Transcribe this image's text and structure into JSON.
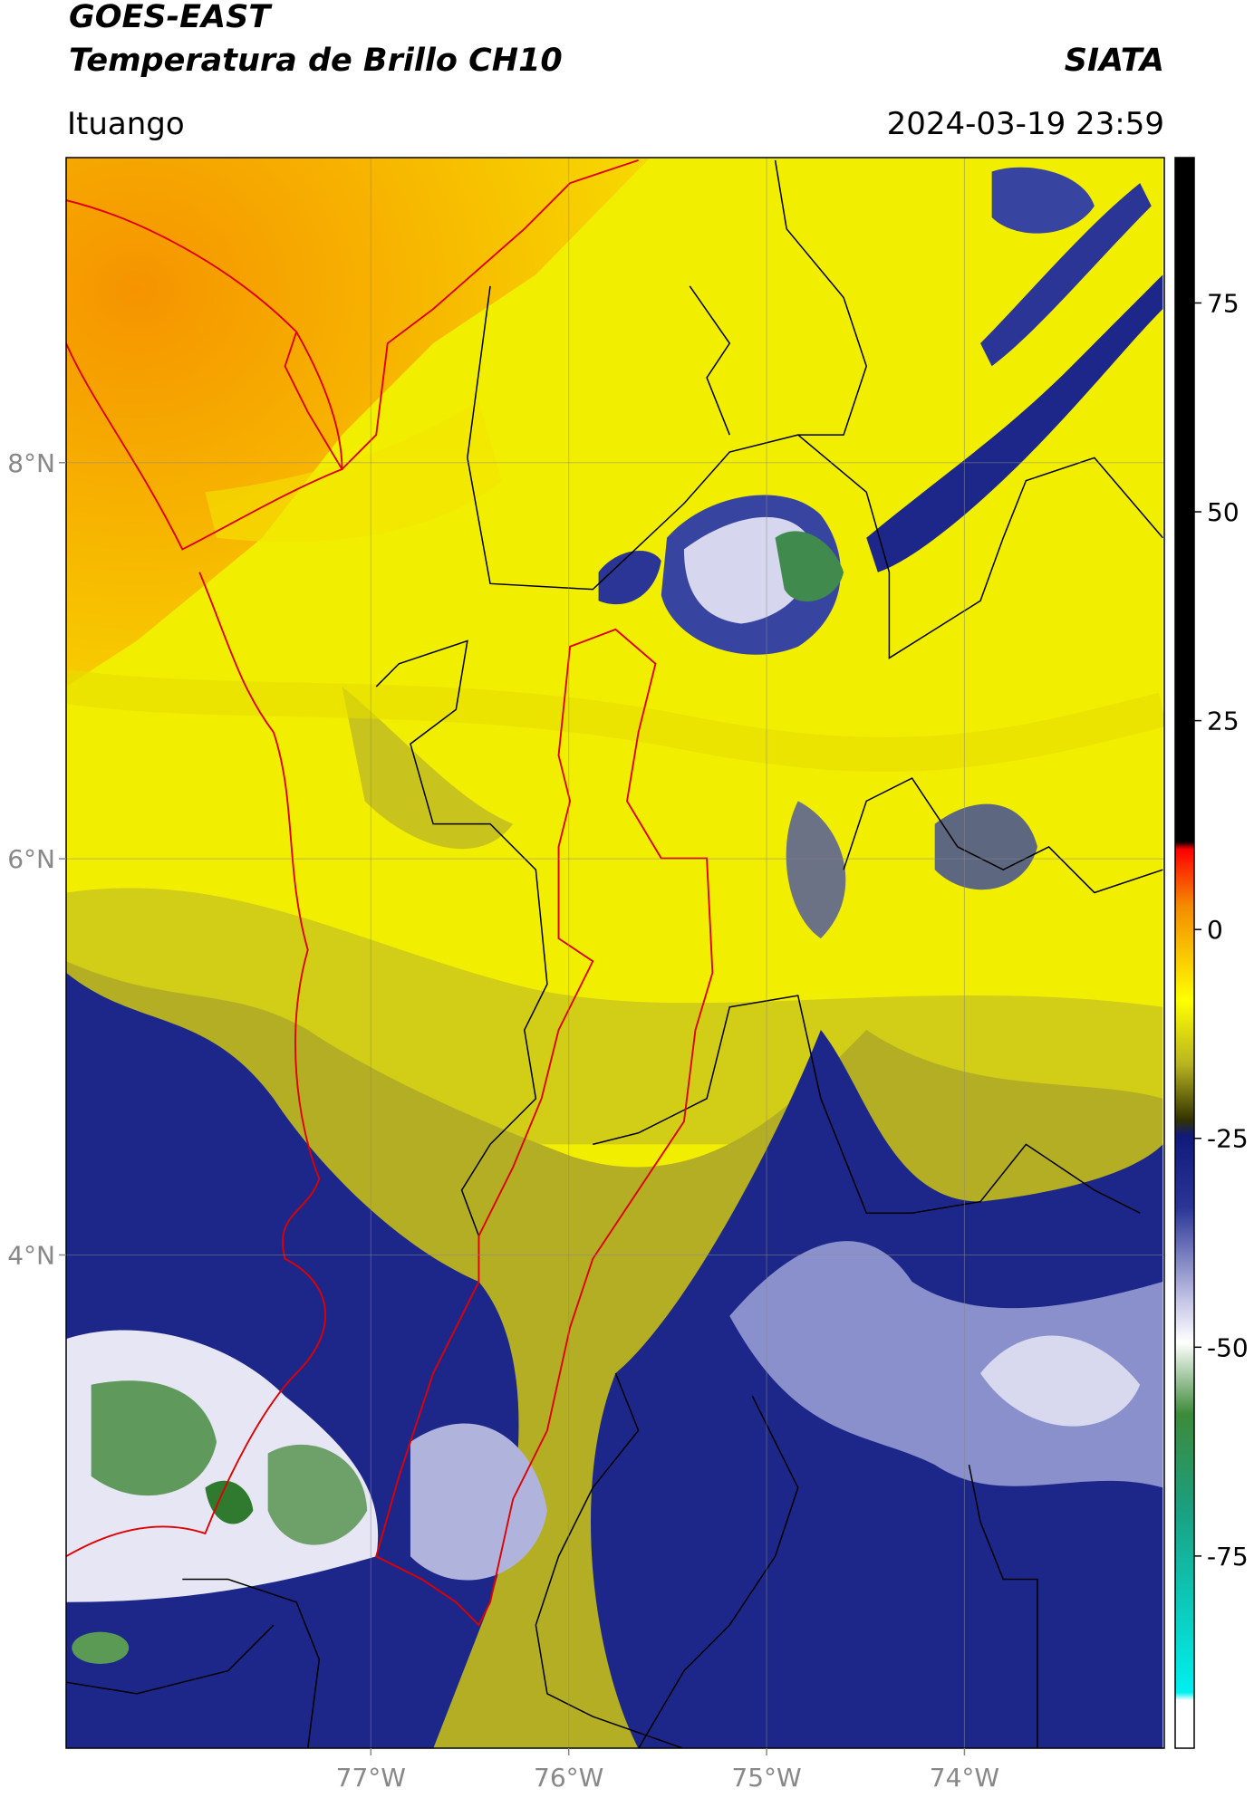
{
  "header": {
    "title": "GOES-EAST",
    "subtitle": "Temperatura de Brillo CH10",
    "organization": "SIATA",
    "location": "Ituango",
    "datetime": "2024-03-19 23:59"
  },
  "map": {
    "lonlim": [
      -78.54,
      -72.99
    ],
    "latlim": [
      1.51,
      9.54
    ],
    "lonticks": [
      {
        "value": -77,
        "label": "77°W"
      },
      {
        "value": -76,
        "label": "76°W"
      },
      {
        "value": -75,
        "label": "75°W"
      },
      {
        "value": -74,
        "label": "74°W"
      }
    ],
    "latticks": [
      {
        "value": 8,
        "label": "8°N"
      },
      {
        "value": 6,
        "label": "6°N"
      },
      {
        "value": 4,
        "label": "4°N"
      }
    ],
    "grid": true
  },
  "colorbar": {
    "lim": [
      -98,
      92.4
    ],
    "ticks": [
      75,
      50,
      25,
      0,
      -25,
      -50,
      -75
    ]
  }
}
